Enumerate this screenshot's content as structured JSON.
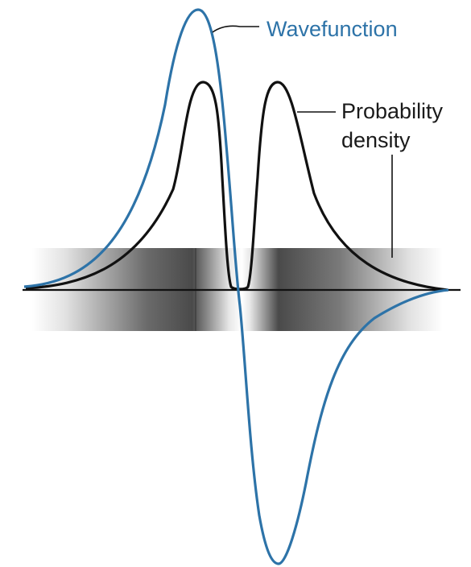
{
  "labels": {
    "wavefunction": "Wavefunction",
    "probability_line1": "Probability",
    "probability_line2": "density"
  },
  "colors": {
    "wavefunction": "#2d73a8",
    "probability_density": "#111111",
    "axis": "#111111",
    "shading_dark": "#3a3a3a"
  }
}
